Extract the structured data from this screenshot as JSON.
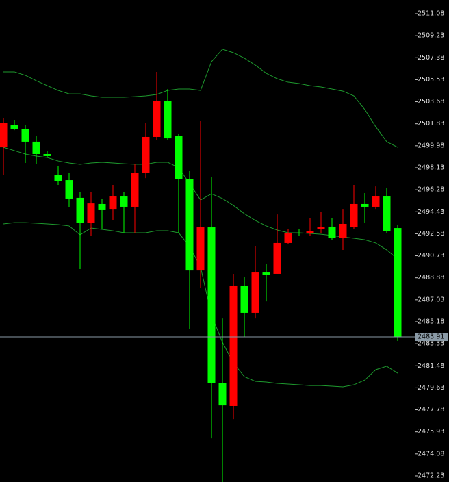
{
  "chart_data": {
    "type": "candlestick",
    "up_color": "#ff0000",
    "down_color": "#00ff00",
    "open": [
      2499.85,
      2501.75,
      2501.41,
      2500.32,
      2499.28,
      2497.55,
      2497.09,
      2495.6,
      2493.52,
      2495.08,
      2494.67,
      2495.71,
      2494.85,
      2497.72,
      2500.72,
      2503.77,
      2500.78,
      2497.15,
      2489.49,
      2493.12,
      2480.0,
      2478.1,
      2488.23,
      2485.93,
      2489.32,
      2489.21,
      2491.8,
      2492.66,
      2492.66,
      2492.95,
      2493.18,
      2492.2,
      2493.12,
      2495.08,
      2494.85,
      2495.71,
      2493.06
    ],
    "high": [
      2502.33,
      2502.16,
      2501.7,
      2500.83,
      2499.57,
      2498.3,
      2497.72,
      2496.11,
      2496.11,
      2495.54,
      2496.69,
      2496.11,
      2498.42,
      2501.87,
      2506.19,
      2504.75,
      2501.01,
      2497.84,
      2502.04,
      2497.38,
      2485.46,
      2489.21,
      2488.92,
      2491.51,
      2490.07,
      2494.21,
      2492.95,
      2492.95,
      2493.93,
      2494.39,
      2493.93,
      2494.67,
      2496.69,
      2496.0,
      2496.57,
      2496.4,
      2493.35
    ],
    "low": [
      2497.55,
      2501.29,
      2498.53,
      2498.42,
      2498.99,
      2496.69,
      2494.79,
      2489.61,
      2492.37,
      2492.95,
      2493.7,
      2492.66,
      2492.66,
      2497.26,
      2500.43,
      2500.43,
      2492.66,
      2484.6,
      2488.05,
      2475.39,
      2471.71,
      2477.0,
      2483.91,
      2485.46,
      2486.9,
      2489.21,
      2491.68,
      2492.37,
      2492.37,
      2492.66,
      2492.08,
      2491.22,
      2492.95,
      2493.52,
      2494.67,
      2492.66,
      2483.57
    ],
    "close": [
      2501.87,
      2501.41,
      2500.32,
      2499.28,
      2499.11,
      2496.98,
      2495.54,
      2493.52,
      2495.13,
      2494.62,
      2495.71,
      2494.85,
      2497.72,
      2500.72,
      2503.77,
      2500.6,
      2497.15,
      2489.49,
      2493.12,
      2480.0,
      2478.15,
      2488.23,
      2485.93,
      2489.32,
      2489.15,
      2491.8,
      2492.66,
      2492.6,
      2492.83,
      2493.12,
      2492.2,
      2493.41,
      2495.08,
      2494.85,
      2495.71,
      2492.83,
      2483.91
    ],
    "lines": [
      {
        "color": "#1e9a2e",
        "values": [
          2506.19,
          2506.19,
          2505.9,
          2505.44,
          2505.03,
          2504.63,
          2504.34,
          2504.34,
          2504.17,
          2504.06,
          2504.06,
          2504.06,
          2504.11,
          2504.17,
          2504.29,
          2504.63,
          2504.75,
          2504.75,
          2504.63,
          2507.05,
          2508.09,
          2507.8,
          2507.34,
          2506.76,
          2506.07,
          2505.61,
          2505.32,
          2505.21,
          2505.03,
          2504.92,
          2504.75,
          2504.57,
          2504.17,
          2503.02,
          2501.58,
          2500.32,
          2499.85
        ]
      },
      {
        "color": "#1e9a2e",
        "values": [
          2499.85,
          2499.57,
          2499.28,
          2499.11,
          2498.99,
          2498.7,
          2498.53,
          2498.42,
          2498.53,
          2498.59,
          2498.53,
          2498.47,
          2498.42,
          2498.42,
          2498.59,
          2498.59,
          2498.13,
          2496.8,
          2495.42,
          2495.94,
          2495.54,
          2494.96,
          2494.27,
          2493.7,
          2493.24,
          2492.89,
          2492.66,
          2492.66,
          2492.6,
          2492.54,
          2492.43,
          2492.31,
          2492.2,
          2492.08,
          2491.8,
          2491.22,
          2490.47
        ]
      },
      {
        "color": "#1e9a2e",
        "values": [
          2493.41,
          2493.52,
          2493.52,
          2493.47,
          2493.41,
          2493.35,
          2493.24,
          2492.49,
          2493.06,
          2492.95,
          2492.83,
          2492.66,
          2492.66,
          2492.66,
          2492.83,
          2492.83,
          2492.66,
          2491.51,
          2489.78,
          2485.75,
          2483.45,
          2481.72,
          2480.57,
          2480.17,
          2480.11,
          2480.0,
          2479.94,
          2479.88,
          2479.82,
          2479.82,
          2479.77,
          2479.71,
          2479.88,
          2480.28,
          2481.15,
          2481.44,
          2480.86
        ]
      }
    ],
    "last_price": 2483.91,
    "ylim": [
      2471.71,
      2512.23
    ],
    "yticks": [
      2511.08,
      2509.23,
      2507.38,
      2505.53,
      2503.68,
      2501.83,
      2499.98,
      2498.13,
      2496.28,
      2494.43,
      2492.58,
      2490.73,
      2488.88,
      2487.03,
      2485.18,
      2483.33,
      2481.48,
      2479.63,
      2477.78,
      2475.93,
      2474.08,
      2472.23
    ]
  }
}
